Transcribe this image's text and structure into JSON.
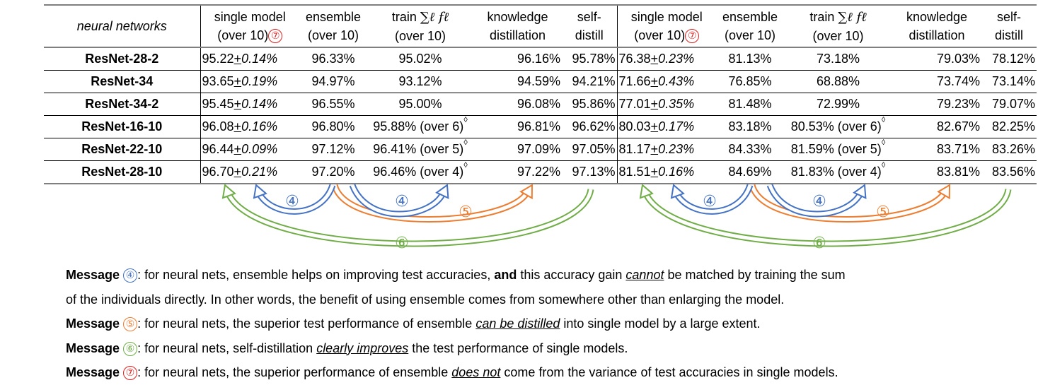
{
  "header": {
    "row_label": "neural networks",
    "col_single_line1": "single model",
    "col_single_line2": "(over 10)",
    "col_ensemble_line1": "ensemble",
    "col_ensemble_line2": "(over 10)",
    "col_train_line1": "train",
    "col_train_formula": "∑ℓ fℓ",
    "col_train_line2": "(over 10)",
    "col_kd_line1": "knowledge",
    "col_kd_line2": "distillation",
    "col_sd_line1": "self-",
    "col_sd_line2": "distill",
    "badge7": "⑦"
  },
  "rows": [
    {
      "name": "ResNet-28-2",
      "left": {
        "single": "95.22",
        "pm": "+",
        "std": "0.14%",
        "ens": "96.33%",
        "train": "95.02%",
        "kd": "96.16%",
        "sd": "95.78%"
      },
      "right": {
        "single": "76.38",
        "pm": "+",
        "std": "0.23%",
        "ens": "81.13%",
        "train": "73.18%",
        "kd": "79.03%",
        "sd": "78.12%"
      }
    },
    {
      "name": "ResNet-34",
      "left": {
        "single": "93.65",
        "pm": "+",
        "std": "0.19%",
        "ens": "94.97%",
        "train": "93.12%",
        "kd": "94.59%",
        "sd": "94.21%"
      },
      "right": {
        "single": "71.66",
        "pm": "+",
        "std": "0.43%",
        "ens": "76.85%",
        "train": "68.88%",
        "kd": "73.74%",
        "sd": "73.14%"
      }
    },
    {
      "name": "ResNet-34-2",
      "left": {
        "single": "95.45",
        "pm": "+",
        "std": "0.14%",
        "ens": "96.55%",
        "train": "95.00%",
        "kd": "96.08%",
        "sd": "95.86%"
      },
      "right": {
        "single": "77.01",
        "pm": "+",
        "std": "0.35%",
        "ens": "81.48%",
        "train": "72.99%",
        "kd": "79.23%",
        "sd": "79.07%"
      }
    },
    {
      "name": "ResNet-16-10",
      "left": {
        "single": "96.08",
        "pm": "+",
        "std": "0.16%",
        "ens": "96.80%",
        "train": "95.88% (over 6)",
        "kd": "96.81%",
        "sd": "96.62%"
      },
      "right": {
        "single": "80.03",
        "pm": "+",
        "std": "0.17%",
        "ens": "83.18%",
        "train": "80.53% (over 6)",
        "kd": "82.67%",
        "sd": "82.25%"
      }
    },
    {
      "name": "ResNet-22-10",
      "left": {
        "single": "96.44",
        "pm": "+",
        "std": "0.09%",
        "ens": "97.12%",
        "train": "96.41% (over 5)",
        "kd": "97.09%",
        "sd": "97.05%"
      },
      "right": {
        "single": "81.17",
        "pm": "+",
        "std": "0.23%",
        "ens": "84.33%",
        "train": "81.59% (over 5)",
        "kd": "83.71%",
        "sd": "83.26%"
      }
    },
    {
      "name": "ResNet-28-10",
      "left": {
        "single": "96.70",
        "pm": "+",
        "std": "0.21%",
        "ens": "97.20%",
        "train": "96.46% (over 4)",
        "kd": "97.22%",
        "sd": "97.13%"
      },
      "right": {
        "single": "81.51",
        "pm": "+",
        "std": "0.16%",
        "ens": "84.69%",
        "train": "81.83% (over 4)",
        "kd": "83.81%",
        "sd": "83.56%"
      }
    }
  ],
  "diamond": "◊",
  "arrow_badges": {
    "four": "④",
    "five": "⑤",
    "six": "⑥"
  },
  "colors": {
    "blue": "#4472c4",
    "orange": "#ed7d31",
    "green": "#70ad47",
    "red": "#e02020"
  },
  "messages": {
    "m4": {
      "label": "Message",
      "badge": "④",
      "t1": ": for neural nets, ensemble helps on improving test accuracies, ",
      "bold": "and",
      "t2": " this accuracy gain ",
      "u": "cannot",
      "t3": " be matched by training the sum",
      "line2": "of the individuals directly. In other words, the benefit of using ensemble comes from somewhere other than enlarging the model."
    },
    "m5": {
      "label": "Message",
      "badge": "⑤",
      "t1": ": for neural nets, the superior test performance of ensemble ",
      "u": "can be distilled",
      "t2": " into single model by a large extent."
    },
    "m6": {
      "label": "Message",
      "badge": "⑥",
      "t1": ": for neural nets, self-distillation ",
      "u": "clearly improves",
      "t2": " the test performance of single models."
    },
    "m7": {
      "label": "Message",
      "badge": "⑦",
      "t1": ": for neural nets, the superior performance of ensemble ",
      "u": "does not",
      "t2": " come from the variance of test accuracies in single models."
    }
  }
}
